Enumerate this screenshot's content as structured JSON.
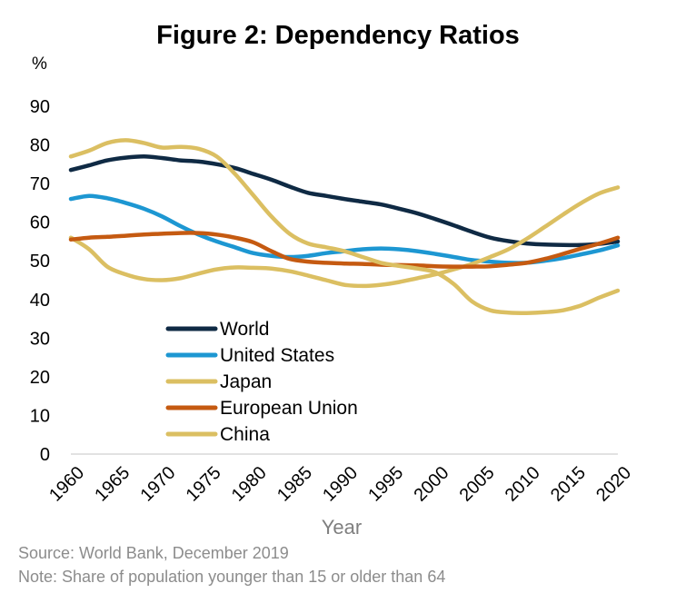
{
  "chart_data": {
    "type": "line",
    "title": "Figure 2: Dependency Ratios",
    "unit_label": "%",
    "xlabel": "Year",
    "ylabel": "%",
    "xlim": [
      1960,
      2020
    ],
    "ylim": [
      0,
      90
    ],
    "yticks": [
      0,
      10,
      20,
      30,
      40,
      50,
      60,
      70,
      80,
      90
    ],
    "xticks": [
      1960,
      1965,
      1970,
      1975,
      1980,
      1985,
      1990,
      1995,
      2000,
      2005,
      2010,
      2015,
      2020
    ],
    "legend_position": "center-left",
    "series": [
      {
        "name": "World",
        "color": "#0f2a44",
        "x": [
          1960,
          1962,
          1964,
          1966,
          1968,
          1970,
          1972,
          1974,
          1976,
          1978,
          1980,
          1982,
          1984,
          1986,
          1988,
          1990,
          1992,
          1994,
          1996,
          1998,
          2000,
          2002,
          2004,
          2006,
          2008,
          2010,
          2012,
          2014,
          2016,
          2018,
          2020
        ],
        "values": [
          73.5,
          74.7,
          76,
          76.7,
          77,
          76.6,
          76,
          75.7,
          75,
          74,
          72.5,
          71,
          69.2,
          67.6,
          66.8,
          66,
          65.3,
          64.6,
          63.5,
          62.3,
          60.8,
          59.2,
          57.5,
          56,
          55.1,
          54.5,
          54.2,
          54.1,
          54.1,
          54.4,
          55
        ]
      },
      {
        "name": "United States",
        "color": "#1d97d2",
        "x": [
          1960,
          1962,
          1964,
          1966,
          1968,
          1970,
          1972,
          1974,
          1976,
          1978,
          1980,
          1982,
          1984,
          1986,
          1988,
          1990,
          1992,
          1994,
          1996,
          1998,
          2000,
          2002,
          2004,
          2006,
          2008,
          2010,
          2012,
          2014,
          2016,
          2018,
          2020
        ],
        "values": [
          66,
          66.8,
          66.2,
          65,
          63.5,
          61.5,
          59,
          56.8,
          55,
          53.5,
          52,
          51.3,
          51,
          51.3,
          52,
          52.5,
          53,
          53.2,
          53,
          52.5,
          51.8,
          51,
          50.2,
          49.8,
          49.5,
          49.5,
          50,
          50.7,
          51.7,
          52.7,
          54
        ]
      },
      {
        "name": "Japan",
        "color": "#dbbf62",
        "x": [
          1960,
          1962,
          1964,
          1966,
          1968,
          1970,
          1972,
          1974,
          1976,
          1978,
          1980,
          1982,
          1984,
          1986,
          1988,
          1990,
          1992,
          1994,
          1996,
          1998,
          2000,
          2002,
          2004,
          2006,
          2008,
          2010,
          2012,
          2014,
          2016,
          2018,
          2020
        ],
        "values": [
          56,
          53,
          48.5,
          46.5,
          45.3,
          45,
          45.5,
          46.7,
          47.8,
          48.3,
          48.2,
          48,
          47.3,
          46.2,
          45,
          43.8,
          43.5,
          43.8,
          44.5,
          45.5,
          46.5,
          47.8,
          49.2,
          51,
          53,
          55.7,
          58.8,
          62,
          65,
          67.5,
          69
        ]
      },
      {
        "name": "European Union",
        "color": "#c55a11",
        "x": [
          1960,
          1962,
          1964,
          1966,
          1968,
          1970,
          1972,
          1974,
          1976,
          1978,
          1980,
          1982,
          1984,
          1986,
          1988,
          1990,
          1992,
          1994,
          1996,
          1998,
          2000,
          2002,
          2004,
          2006,
          2008,
          2010,
          2012,
          2014,
          2016,
          2018,
          2020
        ],
        "values": [
          55.5,
          56,
          56.2,
          56.5,
          56.8,
          57,
          57.2,
          57.2,
          56.8,
          56,
          54.8,
          52.5,
          50.5,
          49.8,
          49.5,
          49.3,
          49.2,
          49,
          48.9,
          48.8,
          48.6,
          48.5,
          48.5,
          48.6,
          49,
          49.5,
          50.5,
          51.8,
          53.2,
          54.5,
          56
        ]
      },
      {
        "name": "China",
        "color": "#dbbf62",
        "x": [
          1960,
          1962,
          1964,
          1966,
          1968,
          1970,
          1972,
          1974,
          1976,
          1978,
          1980,
          1982,
          1984,
          1986,
          1988,
          1990,
          1992,
          1994,
          1996,
          1998,
          2000,
          2002,
          2004,
          2006,
          2008,
          2010,
          2012,
          2014,
          2016,
          2018,
          2020
        ],
        "values": [
          77,
          78.5,
          80.5,
          81.2,
          80.5,
          79.3,
          79.5,
          79,
          77,
          72.5,
          67,
          61.5,
          57,
          54.5,
          53.5,
          52.5,
          51,
          49.5,
          48.7,
          48,
          47,
          44,
          39.5,
          37.2,
          36.6,
          36.5,
          36.7,
          37.2,
          38.5,
          40.5,
          42.3
        ]
      }
    ]
  },
  "footer": {
    "source": "Source: World Bank, December 2019",
    "note": "Note: Share of population younger than 15 or older than 64"
  }
}
